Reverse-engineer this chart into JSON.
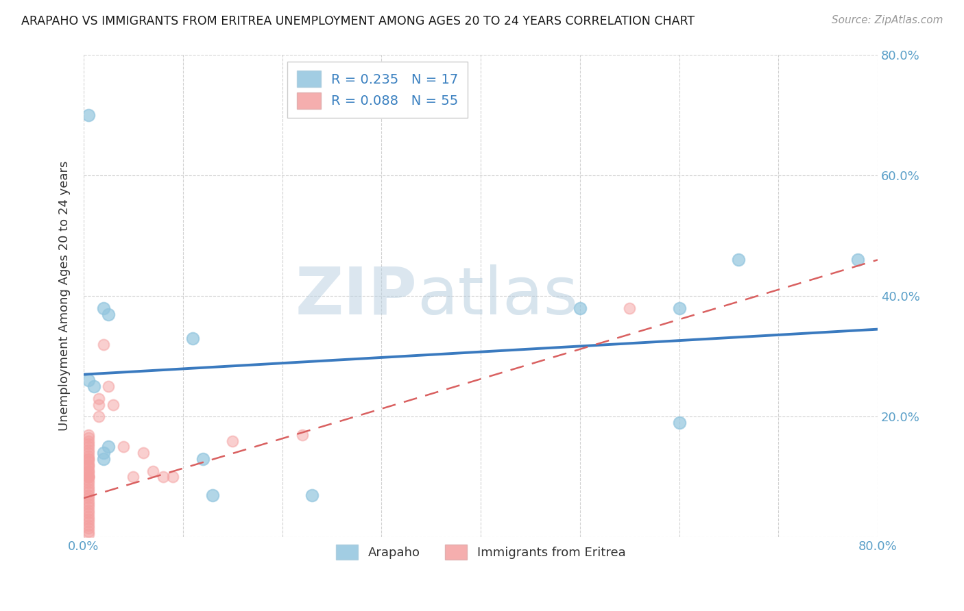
{
  "title": "ARAPAHO VS IMMIGRANTS FROM ERITREA UNEMPLOYMENT AMONG AGES 20 TO 24 YEARS CORRELATION CHART",
  "source": "Source: ZipAtlas.com",
  "ylabel": "Unemployment Among Ages 20 to 24 years",
  "xlim": [
    0,
    0.8
  ],
  "ylim": [
    0,
    0.8
  ],
  "legend1_label": "R = 0.235   N = 17",
  "legend2_label": "R = 0.088   N = 55",
  "group1_name": "Arapaho",
  "group2_name": "Immigrants from Eritrea",
  "arapaho_color": "#92c5de",
  "eritrea_color": "#f4a0a0",
  "watermark_zip": "ZIP",
  "watermark_atlas": "atlas",
  "arapaho_x": [
    0.005,
    0.005,
    0.01,
    0.02,
    0.025,
    0.025,
    0.11,
    0.5,
    0.6,
    0.6,
    0.66,
    0.78,
    0.02,
    0.02,
    0.12,
    0.13,
    0.23
  ],
  "arapaho_y": [
    0.7,
    0.26,
    0.25,
    0.38,
    0.37,
    0.15,
    0.33,
    0.38,
    0.38,
    0.19,
    0.46,
    0.46,
    0.14,
    0.13,
    0.13,
    0.07,
    0.07
  ],
  "eritrea_x": [
    0.005,
    0.005,
    0.005,
    0.005,
    0.005,
    0.005,
    0.005,
    0.005,
    0.005,
    0.005,
    0.005,
    0.005,
    0.005,
    0.005,
    0.005,
    0.005,
    0.005,
    0.005,
    0.005,
    0.005,
    0.005,
    0.005,
    0.005,
    0.005,
    0.005,
    0.005,
    0.005,
    0.005,
    0.005,
    0.005,
    0.005,
    0.005,
    0.005,
    0.005,
    0.005,
    0.005,
    0.005,
    0.005,
    0.005,
    0.005,
    0.015,
    0.015,
    0.015,
    0.02,
    0.025,
    0.03,
    0.04,
    0.05,
    0.06,
    0.07,
    0.08,
    0.09,
    0.15,
    0.22,
    0.55
  ],
  "eritrea_y": [
    0.005,
    0.01,
    0.015,
    0.02,
    0.025,
    0.03,
    0.035,
    0.04,
    0.045,
    0.05,
    0.055,
    0.06,
    0.065,
    0.07,
    0.075,
    0.08,
    0.085,
    0.09,
    0.095,
    0.1,
    0.1,
    0.1,
    0.1,
    0.105,
    0.11,
    0.11,
    0.115,
    0.12,
    0.12,
    0.125,
    0.13,
    0.13,
    0.135,
    0.14,
    0.145,
    0.15,
    0.155,
    0.16,
    0.165,
    0.17,
    0.2,
    0.22,
    0.23,
    0.32,
    0.25,
    0.22,
    0.15,
    0.1,
    0.14,
    0.11,
    0.1,
    0.1,
    0.16,
    0.17,
    0.38
  ],
  "trend_blue_x0": 0.0,
  "trend_blue_y0": 0.27,
  "trend_blue_x1": 0.8,
  "trend_blue_y1": 0.345,
  "trend_pink_x0": 0.0,
  "trend_pink_y0": 0.065,
  "trend_pink_x1": 0.8,
  "trend_pink_y1": 0.46,
  "background_color": "#ffffff",
  "grid_color": "#cccccc"
}
